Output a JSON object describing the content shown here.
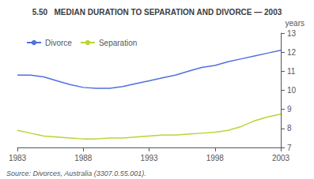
{
  "chart_data": {
    "type": "line",
    "title": "5.50   MEDIAN DURATION TO SEPARATION AND DIVORCE — 2003",
    "ylabel": "years",
    "annotations": [
      "Source: Divorces, Australia (3307.0.55.001)."
    ],
    "x": [
      1983,
      1984,
      1985,
      1986,
      1987,
      1988,
      1989,
      1990,
      1991,
      1992,
      1993,
      1994,
      1995,
      1996,
      1997,
      1998,
      1999,
      2000,
      2001,
      2002,
      2003
    ],
    "series": [
      {
        "name": "Divorce",
        "values": [
          10.8,
          10.8,
          10.7,
          10.5,
          10.3,
          10.15,
          10.1,
          10.1,
          10.2,
          10.35,
          10.5,
          10.65,
          10.8,
          11.0,
          11.2,
          11.3,
          11.5,
          11.65,
          11.8,
          11.95,
          12.1
        ]
      },
      {
        "name": "Separation",
        "values": [
          7.9,
          7.75,
          7.6,
          7.55,
          7.5,
          7.45,
          7.45,
          7.5,
          7.5,
          7.55,
          7.6,
          7.65,
          7.65,
          7.7,
          7.75,
          7.8,
          7.9,
          8.1,
          8.4,
          8.6,
          8.75
        ]
      }
    ],
    "xlim": [
      1983,
      2003
    ],
    "xticks": [
      1983,
      1988,
      1993,
      1998,
      2003
    ],
    "ylim": [
      7,
      13
    ],
    "yticks": [
      7,
      8,
      9,
      10,
      11,
      12,
      13
    ],
    "grid": false,
    "legend": "upper left"
  }
}
